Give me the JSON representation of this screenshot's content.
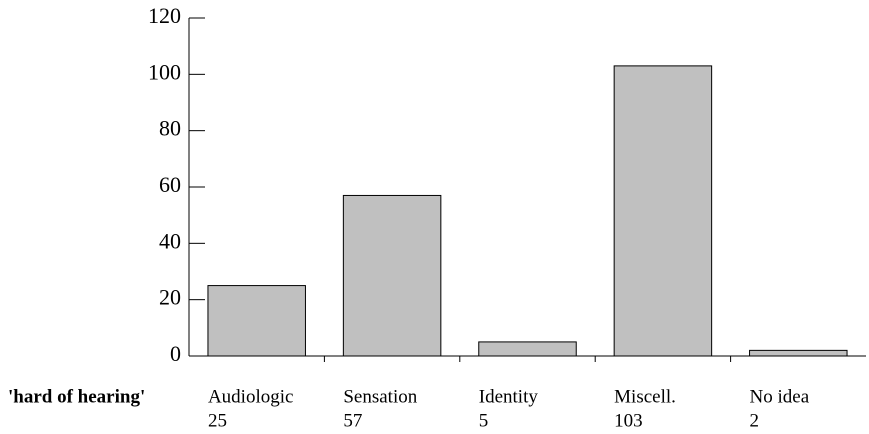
{
  "chart_data": {
    "type": "bar",
    "row_label": "'hard of hearing'",
    "categories": [
      "Audiologic",
      "Sensation",
      "Identity",
      "Miscell.",
      "No idea"
    ],
    "values": [
      25,
      57,
      5,
      103,
      2
    ],
    "color": "#c0c0c0",
    "ylim": [
      0,
      120
    ],
    "yticks": [
      0,
      20,
      40,
      60,
      80,
      100,
      120
    ],
    "grid": false
  }
}
